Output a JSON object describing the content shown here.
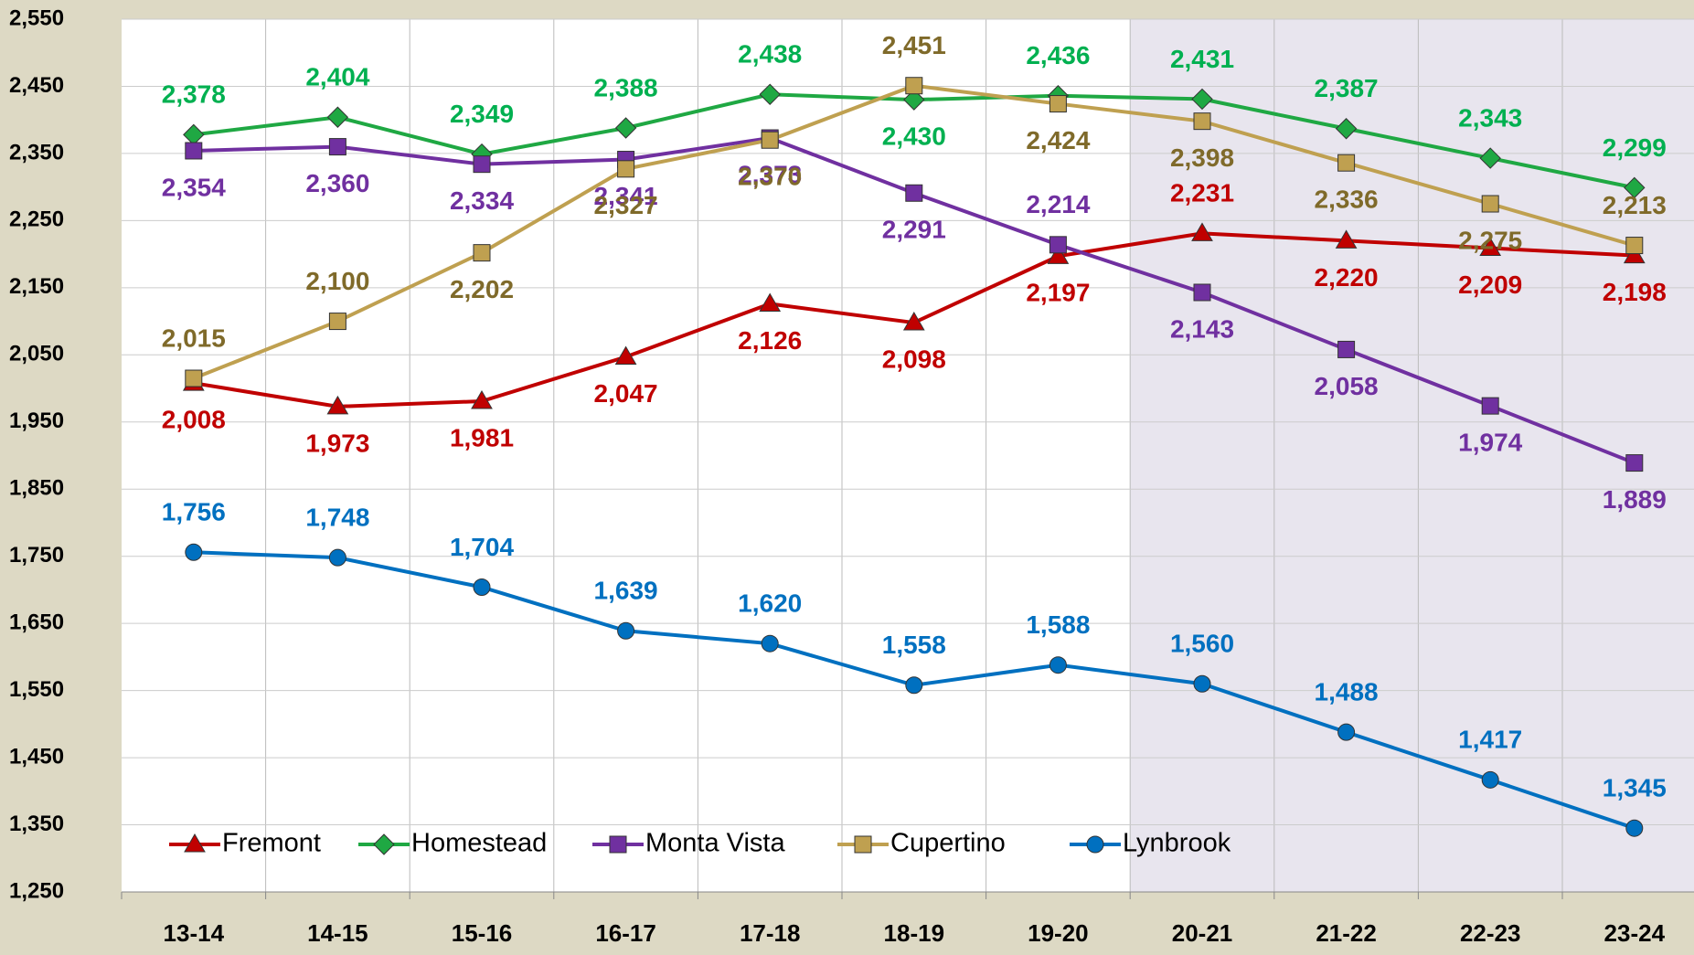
{
  "chart_data": {
    "type": "line",
    "categories": [
      "13-14",
      "14-15",
      "15-16",
      "16-17",
      "17-18",
      "18-19",
      "19-20",
      "20-21",
      "21-22",
      "22-23",
      "23-24"
    ],
    "series": [
      {
        "name": "Fremont",
        "color": "#c00000",
        "marker": "triangle",
        "values": [
          2008,
          1973,
          1981,
          2047,
          2126,
          2098,
          2197,
          2231,
          2220,
          2209,
          2198
        ],
        "value_labels": [
          "2,008",
          "1,973",
          "1,981",
          "2,047",
          "2,126",
          "2,098",
          "2,197",
          "2,231",
          "2,220",
          "2,209",
          "2,198"
        ]
      },
      {
        "name": "Homestead",
        "color": "#1fa843",
        "marker": "diamond",
        "values": [
          2378,
          2404,
          2349,
          2388,
          2438,
          2430,
          2436,
          2431,
          2387,
          2343,
          2299
        ],
        "value_labels": [
          "2,378",
          "2,404",
          "2,349",
          "2,388",
          "2,438",
          "2,430",
          "2,436",
          "2,431",
          "2,387",
          "2,343",
          "2,299"
        ]
      },
      {
        "name": "Monta Vista",
        "color": "#7030a0",
        "marker": "square",
        "values": [
          2354,
          2360,
          2334,
          2341,
          2373,
          2291,
          2214,
          2143,
          2058,
          1974,
          1889
        ],
        "value_labels": [
          "2,354",
          "2,360",
          "2,334",
          "2,341",
          "2,373",
          "2,291",
          "2,214",
          "2,143",
          "2,058",
          "1,974",
          "1,889"
        ]
      },
      {
        "name": "Cupertino",
        "color": "#bfa050",
        "marker": "square",
        "values": [
          2015,
          2100,
          2202,
          2327,
          2370,
          2451,
          2424,
          2398,
          2336,
          2275,
          2213
        ],
        "value_labels": [
          "2,015",
          "2,100",
          "2,202",
          "2,327",
          "2,370",
          "2,451",
          "2,424",
          "2,398",
          "2,336",
          "2,275",
          "2,213"
        ]
      },
      {
        "name": "Lynbrook",
        "color": "#0070c0",
        "marker": "circle",
        "values": [
          1756,
          1748,
          1704,
          1639,
          1620,
          1558,
          1588,
          1560,
          1488,
          1417,
          1345
        ],
        "value_labels": [
          "1,756",
          "1,748",
          "1,704",
          "1,639",
          "1,620",
          "1,558",
          "1,588",
          "1,560",
          "1,488",
          "1,417",
          "1,345"
        ]
      }
    ],
    "ylim": [
      1250,
      2550
    ],
    "yticks": [
      {
        "value": 1250,
        "label": "1,250"
      },
      {
        "value": 1350,
        "label": "1,350"
      },
      {
        "value": 1450,
        "label": "1,450"
      },
      {
        "value": 1550,
        "label": "1,550"
      },
      {
        "value": 1650,
        "label": "1,650"
      },
      {
        "value": 1750,
        "label": "1,750"
      },
      {
        "value": 1850,
        "label": "1,850"
      },
      {
        "value": 1950,
        "label": "1,950"
      },
      {
        "value": 2050,
        "label": "2,050"
      },
      {
        "value": 2150,
        "label": "2,150"
      },
      {
        "value": 2250,
        "label": "2,250"
      },
      {
        "value": 2350,
        "label": "2,350"
      },
      {
        "value": 2450,
        "label": "2,450"
      },
      {
        "value": 2550,
        "label": "2,550"
      }
    ],
    "grid": true,
    "legend": "lower left"
  }
}
